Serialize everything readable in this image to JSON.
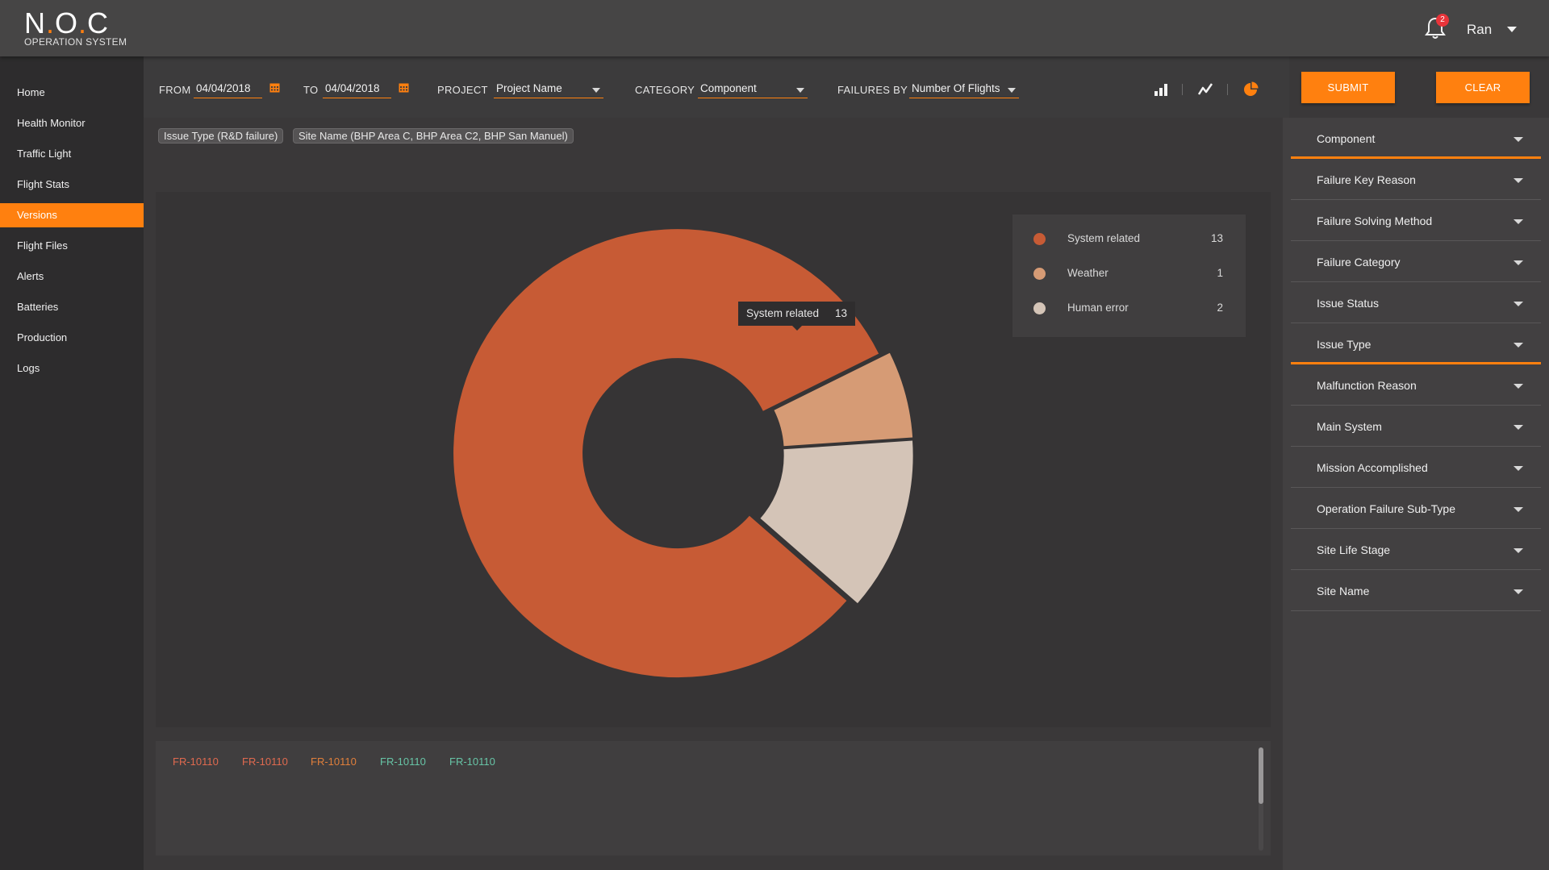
{
  "app": {
    "title_n": "N",
    "title_o": "O",
    "title_c": "C",
    "subtitle": "OPERATION SYSTEM"
  },
  "header": {
    "notification_count": "2",
    "user_name": "Ran"
  },
  "sidebar": {
    "items": [
      {
        "label": "Home"
      },
      {
        "label": "Health Monitor"
      },
      {
        "label": "Traffic Light"
      },
      {
        "label": "Flight Stats"
      },
      {
        "label": "Versions"
      },
      {
        "label": "Flight Files"
      },
      {
        "label": "Alerts"
      },
      {
        "label": "Batteries"
      },
      {
        "label": "Production"
      },
      {
        "label": "Logs"
      }
    ],
    "active": "Versions"
  },
  "toolbar": {
    "from_label": "FROM",
    "from_value": "04/04/2018",
    "to_label": "TO",
    "to_value": "04/04/2018",
    "project_label": "PROJECT",
    "project_value": "Project Name",
    "category_label": "CATEGORY",
    "category_value": "Component",
    "failures_label": "FAILURES BY",
    "failures_value": "Number Of Flights",
    "submit_label": "SUBMIT",
    "clear_label": "CLEAR"
  },
  "tags": [
    {
      "label": "Issue Type (R&D failure)"
    },
    {
      "label": "Site Name (BHP Area C, BHP Area C2, BHP San Manuel)"
    }
  ],
  "colors": {
    "accent": "#ff800f",
    "system_related": "#c75b35",
    "weather": "#d69b75",
    "human_error": "#d4c4b7"
  },
  "chart_data": {
    "type": "pie",
    "categories": [
      "System related",
      "Weather",
      "Human error"
    ],
    "values": [
      13,
      1,
      2
    ],
    "colors": [
      "#c75b35",
      "#d69b75",
      "#d4c4b7"
    ],
    "legend_position": "top-right",
    "tooltip": {
      "label": "System related",
      "value": "13"
    }
  },
  "legend": {
    "items": [
      {
        "label": "System related",
        "value": "13"
      },
      {
        "label": "Weather",
        "value": "1"
      },
      {
        "label": "Human error",
        "value": "2"
      }
    ]
  },
  "tooltip": {
    "label": "System related",
    "value": "13"
  },
  "records": [
    {
      "label": "FR-10110",
      "color": "#e06a4f"
    },
    {
      "label": "FR-10110",
      "color": "#e06a4f"
    },
    {
      "label": "FR-10110",
      "color": "#e07f3b"
    },
    {
      "label": "FR-10110",
      "color": "#67c4a6"
    },
    {
      "label": "FR-10110",
      "color": "#67c4a6"
    }
  ],
  "filters": {
    "items": [
      {
        "label": "Component"
      },
      {
        "label": "Failure Key Reason"
      },
      {
        "label": "Failure Solving Method"
      },
      {
        "label": "Failure Category"
      },
      {
        "label": "Issue Status"
      },
      {
        "label": "Issue Type"
      },
      {
        "label": "Malfunction Reason"
      },
      {
        "label": "Main System"
      },
      {
        "label": "Mission Accomplished"
      },
      {
        "label": "Operation Failure Sub-Type"
      },
      {
        "label": "Site Life Stage"
      },
      {
        "label": "Site Name"
      }
    ],
    "highlighted": [
      "Component",
      "Issue Type"
    ]
  }
}
